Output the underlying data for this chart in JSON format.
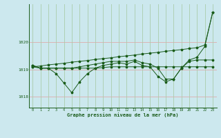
{
  "background_color": "#cce8ee",
  "grid_color_h": "#ddaaaa",
  "grid_color_v": "#aaccaa",
  "line_color": "#1a5c1a",
  "x_ticks": [
    0,
    1,
    2,
    3,
    4,
    5,
    6,
    7,
    8,
    9,
    10,
    11,
    12,
    13,
    14,
    15,
    16,
    17,
    18,
    19,
    20,
    21,
    22,
    23
  ],
  "y_ticks": [
    1018,
    1019,
    1020
  ],
  "ylim": [
    1017.6,
    1021.4
  ],
  "xlim": [
    -0.5,
    23.5
  ],
  "xlabel": "Graphe pression niveau de la mer (hPa)",
  "series_dip": [
    1019.15,
    1019.05,
    1019.05,
    1018.85,
    1018.5,
    1018.15,
    1018.55,
    1018.85,
    1019.05,
    1019.15,
    1019.2,
    1019.25,
    1019.2,
    1019.3,
    1019.15,
    1019.1,
    1018.75,
    1018.55,
    1018.65,
    1019.05,
    1019.35,
    1019.45,
    1019.85,
    1021.1
  ],
  "series_linear": [
    1019.1,
    1019.13,
    1019.17,
    1019.2,
    1019.23,
    1019.27,
    1019.3,
    1019.33,
    1019.37,
    1019.4,
    1019.43,
    1019.47,
    1019.5,
    1019.53,
    1019.57,
    1019.6,
    1019.63,
    1019.67,
    1019.7,
    1019.73,
    1019.77,
    1019.8,
    1019.9,
    1021.1
  ],
  "series_flat": [
    1019.1,
    1019.05,
    1019.05,
    1019.05,
    1019.05,
    1019.05,
    1019.05,
    1019.05,
    1019.05,
    1019.07,
    1019.1,
    1019.1,
    1019.1,
    1019.1,
    1019.1,
    1019.1,
    1019.1,
    1019.1,
    1019.1,
    1019.1,
    1019.1,
    1019.1,
    1019.1,
    1019.1
  ],
  "series_mid": [
    1019.15,
    1019.05,
    1019.05,
    1019.05,
    1019.05,
    1019.05,
    1019.1,
    1019.15,
    1019.2,
    1019.25,
    1019.3,
    1019.3,
    1019.3,
    1019.35,
    1019.25,
    1019.2,
    1019.05,
    1018.65,
    1018.65,
    1019.05,
    1019.3,
    1019.35,
    1019.35,
    1019.35
  ]
}
